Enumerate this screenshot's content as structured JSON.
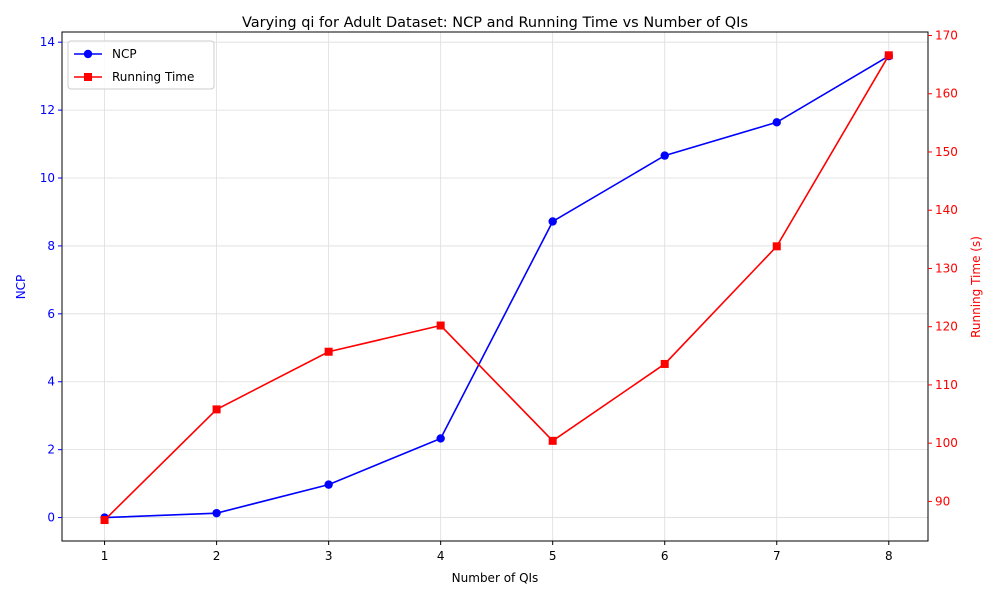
{
  "chart_data": {
    "type": "line",
    "title": "Varying qi for Adult Dataset: NCP and Running Time vs Number of QIs",
    "xlabel": "Number of QIs",
    "ylabel_left": "NCP",
    "ylabel_right": "Running Time (s)",
    "x": [
      1,
      2,
      3,
      4,
      5,
      6,
      7,
      8
    ],
    "xlim": [
      0.62,
      8.35
    ],
    "ylim_left": [
      -0.69,
      14.3
    ],
    "ylim_right": [
      83.2,
      170.6
    ],
    "yticks_left": [
      0,
      2,
      4,
      6,
      8,
      10,
      12,
      14
    ],
    "yticks_right": [
      90,
      100,
      110,
      120,
      130,
      140,
      150,
      160,
      170
    ],
    "grid": true,
    "legend_position": "top-left",
    "series": [
      {
        "name": "NCP",
        "axis": "left",
        "color": "#0000ff",
        "marker": "circle",
        "values": [
          0.0,
          0.13,
          0.97,
          2.33,
          8.72,
          10.66,
          11.64,
          13.59
        ]
      },
      {
        "name": "Running Time",
        "axis": "right",
        "color": "#ff0000",
        "marker": "square",
        "values": [
          86.8,
          105.8,
          115.7,
          120.2,
          100.4,
          113.6,
          133.8,
          166.6
        ]
      }
    ]
  }
}
